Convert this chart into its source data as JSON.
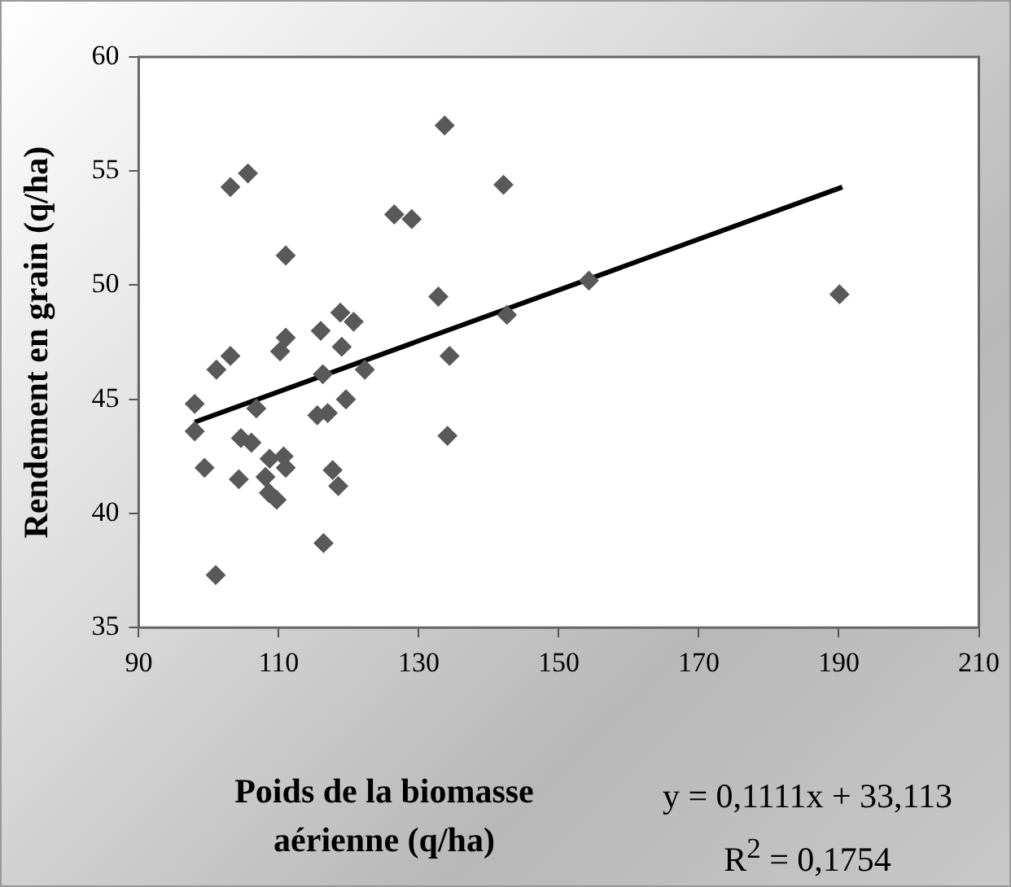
{
  "chart_data": {
    "type": "scatter",
    "xlabel": "Poids de la biomasse aérienne (q/ha)",
    "ylabel": "Rendement en grain (q/ha)",
    "xlim": [
      90,
      210
    ],
    "xticks": [
      90,
      110,
      130,
      150,
      170,
      190,
      210
    ],
    "ylim": [
      35,
      60
    ],
    "yticks": [
      35,
      40,
      45,
      50,
      55,
      60
    ],
    "grid": false,
    "annotations": [
      "y = 0,1111x + 33,113",
      "R$^{2}$ = 0,1754"
    ],
    "series": [
      {
        "marker": "diamond",
        "color": "#595959",
        "x": [
          98,
          98,
          99.4,
          101,
          101.1,
          103.1,
          103.1,
          105.6,
          104.3,
          104.6,
          106.1,
          106.8,
          108.1,
          108.7,
          108.6,
          109.7,
          110.7,
          111,
          110.2,
          111,
          111,
          116,
          116.3,
          115.5,
          117,
          116.4,
          117.7,
          118.5,
          118.8,
          119,
          119.6,
          120.7,
          122.3,
          126.5,
          129,
          133.7,
          132.8,
          134.4,
          134.1,
          142.1,
          142.6,
          154.3,
          190.1
        ],
        "values": [
          44.8,
          43.6,
          42,
          37.3,
          46.3,
          46.9,
          54.3,
          54.9,
          41.5,
          43.3,
          43.1,
          44.6,
          41.6,
          42.4,
          40.9,
          40.6,
          42.5,
          42,
          47.1,
          47.7,
          51.3,
          48,
          46.1,
          44.3,
          44.4,
          38.7,
          41.9,
          41.2,
          48.8,
          47.3,
          45,
          48.4,
          46.3,
          53.1,
          52.9,
          57,
          49.5,
          46.9,
          43.4,
          54.4,
          48.7,
          50.2,
          49.6
        ]
      },
      {
        "type": "line",
        "marker": "none",
        "color": "#000000",
        "x": [
          98,
          190.5
        ],
        "values": [
          44,
          54.3
        ]
      }
    ]
  }
}
